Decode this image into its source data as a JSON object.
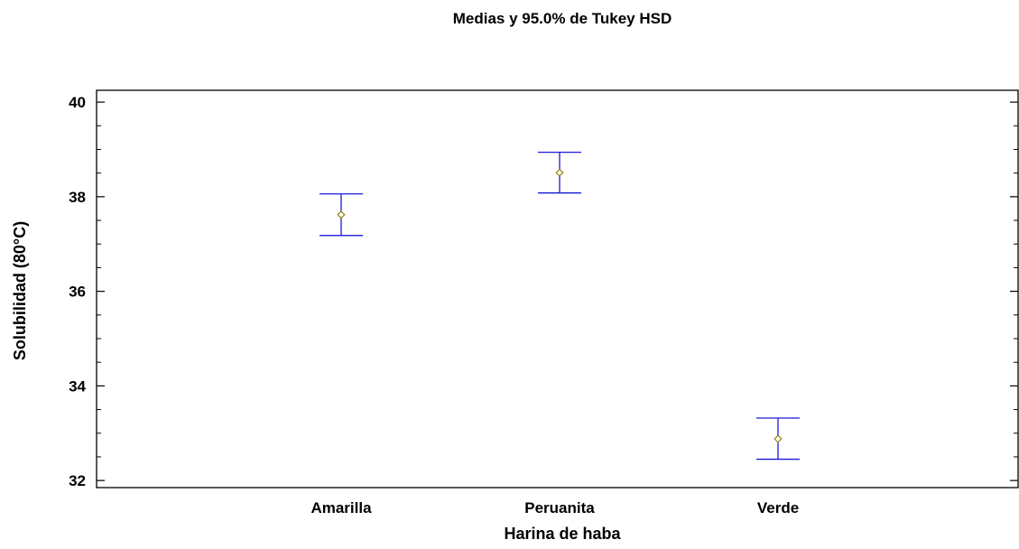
{
  "chart_data": {
    "type": "scatter",
    "title": "Medias y 95.0% de Tukey HSD",
    "xlabel": "Harina de haba",
    "ylabel": "Solubilidad (80°C)",
    "categories": [
      "Amarilla",
      "Peruanita",
      "Verde"
    ],
    "series": [
      {
        "means": [
          37.62,
          38.51,
          32.88
        ],
        "lower": [
          37.18,
          38.08,
          32.45
        ],
        "upper": [
          38.06,
          38.94,
          33.32
        ]
      }
    ],
    "ylim": [
      31.85,
      40.25
    ],
    "yticks": [
      32,
      34,
      36,
      38,
      40
    ],
    "yticks_minor": [
      32.5,
      33,
      33.5,
      34.5,
      35,
      35.5,
      36.5,
      37,
      37.5,
      38.5,
      39,
      39.5
    ],
    "ytick_labels": [
      "32",
      "34",
      "36",
      "38",
      "40"
    ],
    "grid": false,
    "legend": "none",
    "colors": {
      "interval": "#1a1ad8",
      "mean_marker": "#8a7a00",
      "frame": "#000000"
    }
  }
}
